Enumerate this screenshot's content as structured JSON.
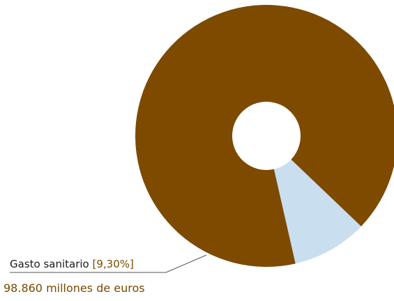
{
  "chart_data": {
    "type": "pie",
    "title": "",
    "slices": [
      {
        "label": "Gasto sanitario",
        "value": 9.3,
        "color": "#c9dff0"
      },
      {
        "label": "",
        "value": 90.7,
        "color": "#7d4a00"
      }
    ]
  },
  "annotation": {
    "label": "Gasto sanitario",
    "percent_text": "[9,30%]",
    "amount": "98.860 millones de euros"
  }
}
